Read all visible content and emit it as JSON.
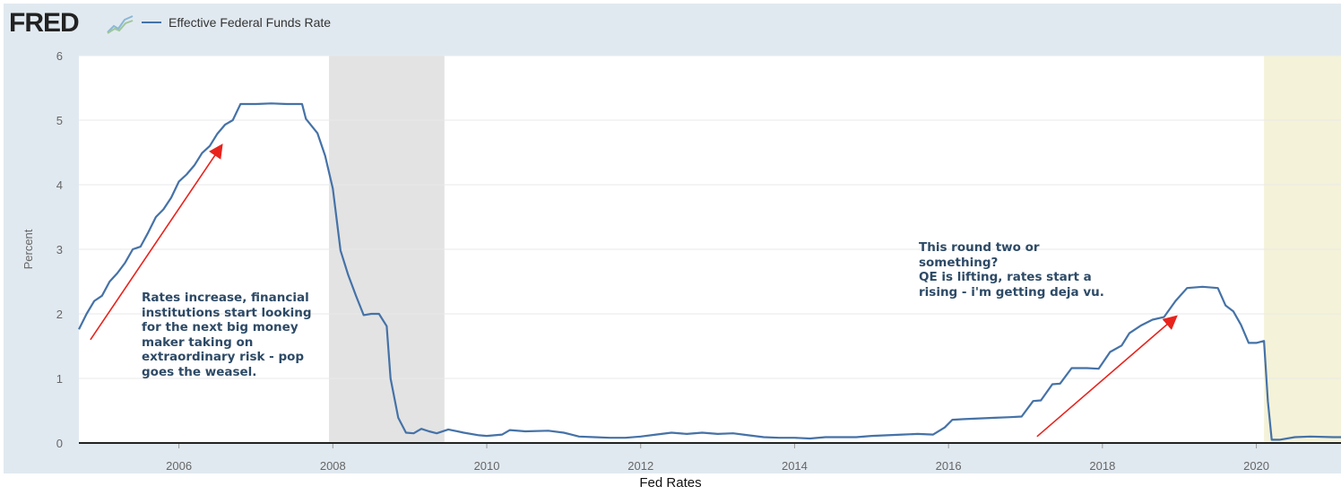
{
  "header": {
    "logo_text": "FRED",
    "logo_icon": "line-chart-icon",
    "legend_label": "Effective Federal Funds Rate"
  },
  "caption": "Fed Rates",
  "annotations": {
    "left_text": "Rates increase, financial\ninstitutions start looking\nfor the next big money\nmaker taking on\nextraordinary risk - pop\ngoes the weasel.",
    "right_text": "This round two or\nsomething?\nQE is lifting, rates start a\nrising - i'm getting deja vu."
  },
  "colors": {
    "line": "#4572a7",
    "recession": "#e3e3e3",
    "highlight": "#f4f2d8",
    "arrow": "#e8231c",
    "frame": "#e1e9f0"
  },
  "chart_data": {
    "type": "line",
    "title": "",
    "xlabel": "",
    "ylabel": "Percent",
    "xlim": [
      2004.7,
      2021.1
    ],
    "ylim": [
      0,
      6
    ],
    "yticks": [
      0,
      1,
      2,
      3,
      4,
      5,
      6
    ],
    "xticks": [
      2006,
      2008,
      2010,
      2012,
      2014,
      2016,
      2018,
      2020
    ],
    "grid": true,
    "legend": "top-left",
    "shaded_regions": [
      {
        "start": 2007.95,
        "end": 2009.45,
        "kind": "recession"
      },
      {
        "start": 2020.1,
        "end": 2021.1,
        "kind": "highlight"
      }
    ],
    "series": [
      {
        "name": "Effective Federal Funds Rate",
        "x": [
          2004.7,
          2004.8,
          2004.9,
          2005.0,
          2005.1,
          2005.2,
          2005.3,
          2005.4,
          2005.5,
          2005.6,
          2005.7,
          2005.8,
          2005.9,
          2006.0,
          2006.1,
          2006.2,
          2006.3,
          2006.4,
          2006.5,
          2006.6,
          2006.7,
          2006.8,
          2007.0,
          2007.2,
          2007.4,
          2007.6,
          2007.65,
          2007.8,
          2007.9,
          2008.0,
          2008.1,
          2008.2,
          2008.3,
          2008.4,
          2008.5,
          2008.6,
          2008.7,
          2008.75,
          2008.85,
          2008.95,
          2009.05,
          2009.15,
          2009.25,
          2009.35,
          2009.5,
          2009.7,
          2009.9,
          2010.0,
          2010.2,
          2010.3,
          2010.5,
          2010.8,
          2011.0,
          2011.2,
          2011.4,
          2011.6,
          2011.8,
          2012.0,
          2012.2,
          2012.4,
          2012.6,
          2012.8,
          2013.0,
          2013.2,
          2013.4,
          2013.6,
          2013.8,
          2014.0,
          2014.2,
          2014.4,
          2014.6,
          2014.8,
          2015.0,
          2015.2,
          2015.4,
          2015.6,
          2015.8,
          2015.95,
          2016.05,
          2016.2,
          2016.4,
          2016.6,
          2016.8,
          2016.95,
          2017.1,
          2017.2,
          2017.35,
          2017.45,
          2017.6,
          2017.8,
          2017.95,
          2018.1,
          2018.25,
          2018.35,
          2018.5,
          2018.65,
          2018.8,
          2018.95,
          2019.1,
          2019.3,
          2019.5,
          2019.6,
          2019.7,
          2019.8,
          2019.9,
          2020.0,
          2020.1,
          2020.15,
          2020.2,
          2020.3,
          2020.5,
          2020.7,
          2021.0,
          2021.1
        ],
        "values": [
          1.76,
          2.0,
          2.2,
          2.28,
          2.5,
          2.63,
          2.79,
          3.0,
          3.04,
          3.26,
          3.5,
          3.62,
          3.8,
          4.05,
          4.16,
          4.3,
          4.49,
          4.6,
          4.79,
          4.93,
          5.0,
          5.25,
          5.25,
          5.26,
          5.25,
          5.25,
          5.02,
          4.8,
          4.45,
          3.94,
          2.98,
          2.6,
          2.28,
          1.98,
          2.0,
          2.0,
          1.81,
          1.0,
          0.39,
          0.16,
          0.15,
          0.22,
          0.18,
          0.15,
          0.21,
          0.16,
          0.12,
          0.11,
          0.13,
          0.2,
          0.18,
          0.19,
          0.16,
          0.1,
          0.09,
          0.08,
          0.08,
          0.1,
          0.13,
          0.16,
          0.14,
          0.16,
          0.14,
          0.15,
          0.12,
          0.09,
          0.08,
          0.08,
          0.07,
          0.09,
          0.09,
          0.09,
          0.11,
          0.12,
          0.13,
          0.14,
          0.13,
          0.24,
          0.36,
          0.37,
          0.38,
          0.39,
          0.4,
          0.41,
          0.65,
          0.66,
          0.91,
          0.92,
          1.16,
          1.16,
          1.15,
          1.41,
          1.51,
          1.7,
          1.82,
          1.91,
          1.95,
          2.2,
          2.4,
          2.42,
          2.4,
          2.13,
          2.04,
          1.83,
          1.55,
          1.55,
          1.58,
          0.65,
          0.05,
          0.05,
          0.09,
          0.1,
          0.09,
          0.09
        ]
      }
    ],
    "arrows": [
      {
        "from": [
          2004.85,
          1.6
        ],
        "to": [
          2006.55,
          4.6
        ]
      },
      {
        "from": [
          2017.15,
          0.1
        ],
        "to": [
          2018.95,
          1.95
        ]
      }
    ]
  }
}
